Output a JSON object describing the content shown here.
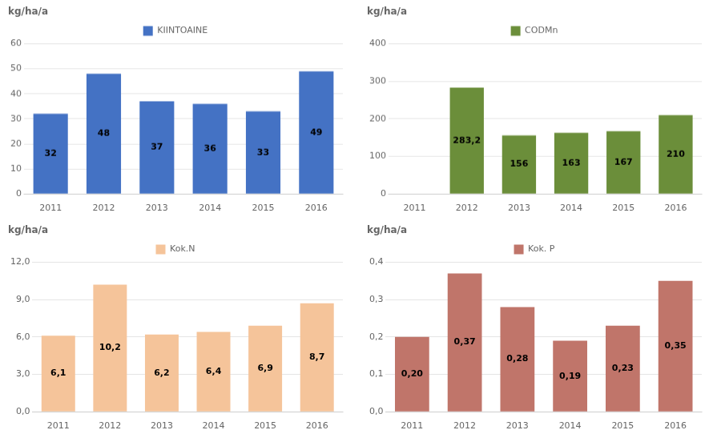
{
  "chart_data": [
    {
      "type": "bar",
      "ylabel": "kg/ha/a",
      "categories": [
        "2011",
        "2012",
        "2013",
        "2014",
        "2015",
        "2016"
      ],
      "series": [
        {
          "name": "KIINTOAINE",
          "color": "#4472C4",
          "values": [
            32,
            48,
            37,
            36,
            33,
            49
          ]
        }
      ],
      "ylim": [
        0,
        60
      ],
      "yticks": [
        0,
        10,
        20,
        30,
        40,
        50,
        60
      ],
      "grid": true,
      "legend": "top",
      "data_labels": true
    },
    {
      "type": "bar",
      "ylabel": "kg/ha/a",
      "categories": [
        "2011",
        "2012",
        "2013",
        "2014",
        "2015",
        "2016"
      ],
      "series": [
        {
          "name": "CODMn",
          "color": "#6B8E3A",
          "values": [
            0,
            283.2,
            156,
            163,
            167,
            210
          ],
          "value_labels": [
            null,
            "283,2",
            "156",
            "163",
            "167",
            "210"
          ]
        }
      ],
      "ylim": [
        0,
        400
      ],
      "yticks": [
        0,
        100,
        200,
        300,
        400
      ],
      "grid": true,
      "legend": "top",
      "data_labels": true
    },
    {
      "type": "bar",
      "ylabel": "kg/ha/a",
      "categories": [
        "2011",
        "2012",
        "2013",
        "2014",
        "2015",
        "2016"
      ],
      "series": [
        {
          "name": "Kok.N",
          "color": "#F5C49A",
          "values": [
            6.1,
            10.2,
            6.2,
            6.4,
            6.9,
            8.7
          ],
          "value_labels": [
            "6,1",
            "10,2",
            "6,2",
            "6,4",
            "6,9",
            "8,7"
          ]
        }
      ],
      "ylim": [
        0,
        12
      ],
      "yticks": [
        {
          "value": 0,
          "label": "0,0"
        },
        {
          "value": 3,
          "label": "3,0"
        },
        {
          "value": 6,
          "label": "6,0"
        },
        {
          "value": 9,
          "label": "9,0"
        },
        {
          "value": 12,
          "label": "12,0"
        }
      ],
      "grid": true,
      "legend": "top",
      "data_labels": true
    },
    {
      "type": "bar",
      "ylabel": "kg/ha/a",
      "categories": [
        "2011",
        "2012",
        "2013",
        "2014",
        "2015",
        "2016"
      ],
      "series": [
        {
          "name": "Kok. P",
          "color": "#C0756A",
          "values": [
            0.2,
            0.37,
            0.28,
            0.19,
            0.23,
            0.35
          ],
          "value_labels": [
            "0,20",
            "0,37",
            "0,28",
            "0,19",
            "0,23",
            "0,35"
          ]
        }
      ],
      "ylim": [
        0,
        0.4
      ],
      "yticks": [
        {
          "value": 0,
          "label": "0,0"
        },
        {
          "value": 0.1,
          "label": "0,1"
        },
        {
          "value": 0.2,
          "label": "0,2"
        },
        {
          "value": 0.3,
          "label": "0,3"
        },
        {
          "value": 0.4,
          "label": "0,4"
        }
      ],
      "grid": true,
      "legend": "top",
      "data_labels": true
    }
  ]
}
